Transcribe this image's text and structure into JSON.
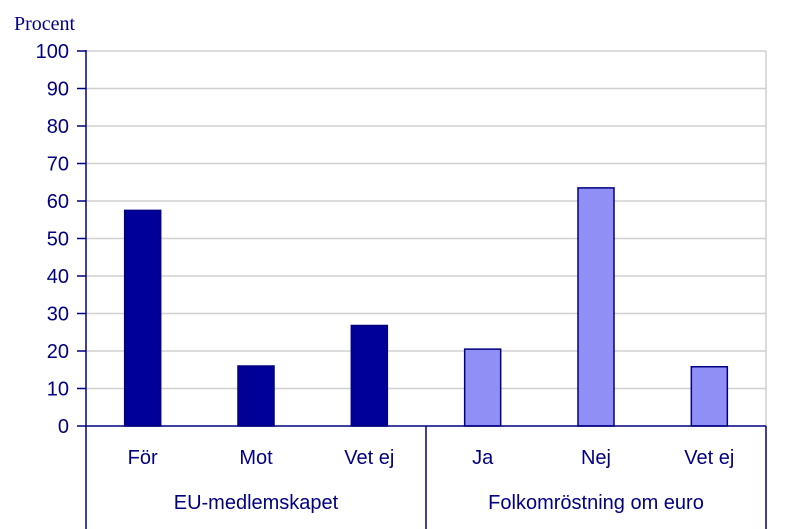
{
  "chart_data": {
    "type": "bar",
    "ylabel": "Procent",
    "ylim": [
      0,
      100
    ],
    "yticks": [
      "0",
      "10",
      "20",
      "30",
      "40",
      "50",
      "60",
      "70",
      "80",
      "90",
      "100"
    ],
    "grid": true,
    "groups": [
      {
        "name": "EU-medlemskapet",
        "color": "#000099",
        "categories": [
          "För",
          "Mot",
          "Vet ej"
        ],
        "values": [
          57.5,
          16,
          26.8
        ]
      },
      {
        "name": "Folkomröstning om euro",
        "color": "#8F8FF5",
        "categories": [
          "Ja",
          "Nej",
          "Vet ej"
        ],
        "values": [
          20.5,
          63.5,
          15.8
        ]
      }
    ]
  },
  "colors": {
    "axis": "#000080",
    "grid": "#d0d0d0",
    "bar_stroke": "#000080"
  }
}
